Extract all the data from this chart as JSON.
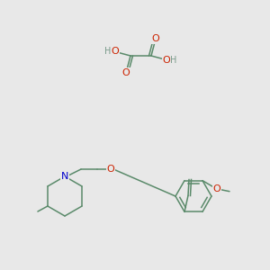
{
  "background_color": "#e8e8e8",
  "bond_color": "#5a8a6a",
  "atom_colors": {
    "O": "#cc2200",
    "N": "#0000cc",
    "H": "#7a9a8a",
    "C": "#5a8a6a"
  },
  "font_size_atom": 8.0,
  "font_size_H": 7.0,
  "font_size_methyl": 7.5
}
